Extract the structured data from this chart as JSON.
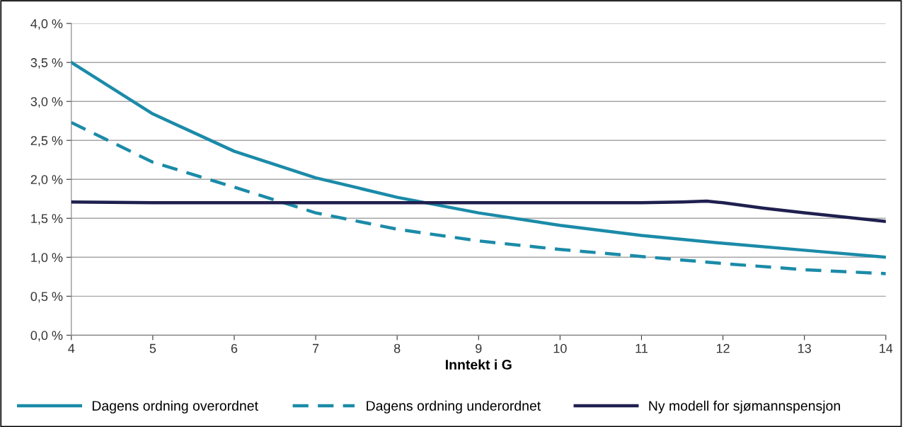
{
  "chart_data": {
    "type": "line",
    "xlabel": "Inntekt i G",
    "xlim": [
      4,
      14
    ],
    "xticks": [
      4,
      5,
      6,
      7,
      8,
      9,
      10,
      11,
      12,
      13,
      14
    ],
    "ylim": [
      0,
      4
    ],
    "yticks": [
      {
        "value": 0,
        "label": "0,0 %"
      },
      {
        "value": 0.5,
        "label": "0,5 %"
      },
      {
        "value": 1,
        "label": "1,0 %"
      },
      {
        "value": 1.5,
        "label": "1,5 %"
      },
      {
        "value": 2,
        "label": "2,0 %"
      },
      {
        "value": 2.5,
        "label": "2,5 %"
      },
      {
        "value": 3,
        "label": "3,0 %"
      },
      {
        "value": 3.5,
        "label": "3,5 %"
      },
      {
        "value": 4,
        "label": "4,0 %"
      }
    ],
    "grid": "y",
    "legend": "bottom",
    "marker": "none",
    "series": [
      {
        "name": "Dagens ordning overordnet",
        "color": "#1b8ba8",
        "line_style": "solid",
        "x": [
          4,
          5,
          6,
          7,
          8,
          9,
          10,
          11,
          12,
          13,
          14
        ],
        "values": [
          3.5,
          2.84,
          2.36,
          2.02,
          1.77,
          1.57,
          1.41,
          1.28,
          1.18,
          1.09,
          1.0
        ]
      },
      {
        "name": "Dagens ordning underordnet",
        "color": "#1b8ba8",
        "line_style": "dashed",
        "x": [
          4,
          5,
          6,
          7,
          8,
          9,
          10,
          11,
          12,
          13,
          14
        ],
        "values": [
          2.73,
          2.22,
          1.9,
          1.57,
          1.36,
          1.21,
          1.1,
          1.01,
          0.92,
          0.84,
          0.79
        ]
      },
      {
        "name": "Ny modell for sjømannspensjon",
        "color": "#1f1f4f",
        "line_style": "solid",
        "x": [
          4,
          5,
          6,
          7,
          8,
          9,
          10,
          11,
          11.5,
          11.8,
          12,
          12.5,
          13,
          14
        ],
        "values": [
          1.71,
          1.7,
          1.7,
          1.7,
          1.7,
          1.7,
          1.7,
          1.7,
          1.71,
          1.72,
          1.7,
          1.63,
          1.57,
          1.46
        ]
      }
    ]
  }
}
